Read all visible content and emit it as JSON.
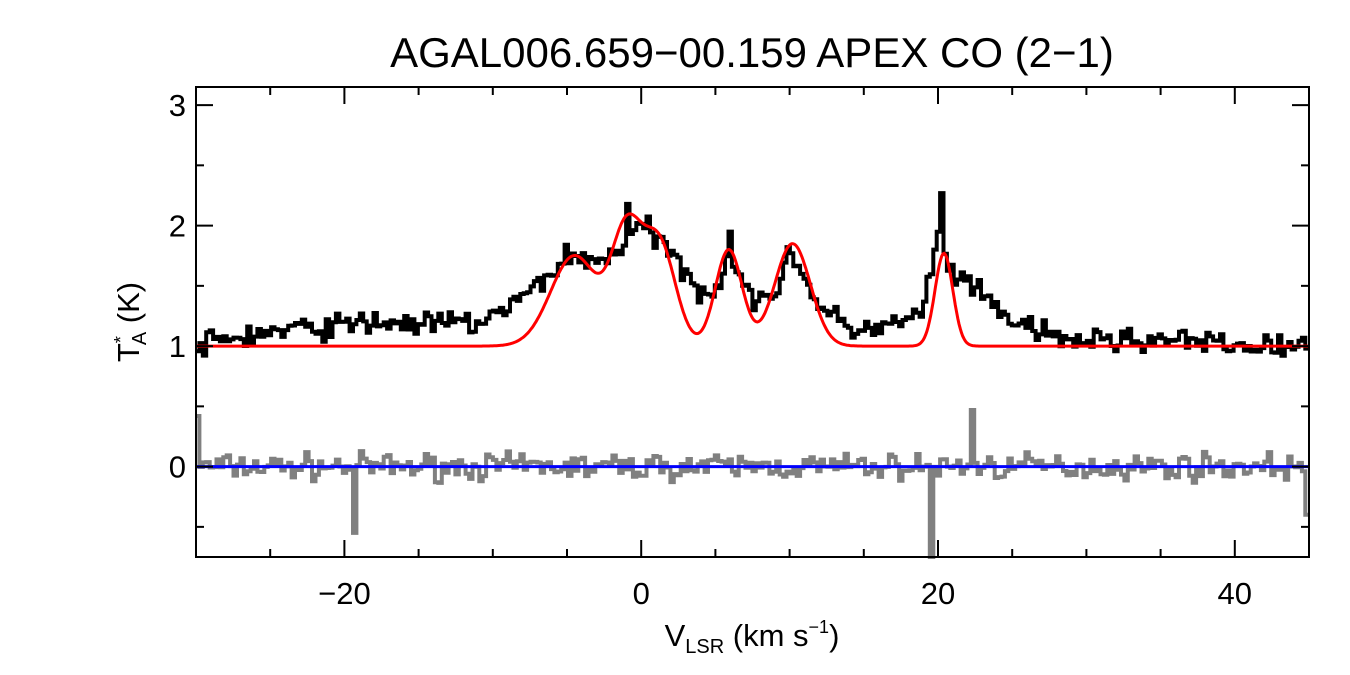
{
  "chart_data": {
    "type": "line",
    "title": "AGAL006.659−00.159  APEX CO (2−1)",
    "xlabel": {
      "main": "V",
      "sub": "LSR",
      "unit_open": " (km s",
      "sup": "−1",
      "unit_close": ")"
    },
    "ylabel": {
      "main": "T",
      "sup": "*",
      "sub": "A",
      "unit": " (K)"
    },
    "xlim": [
      -30,
      45
    ],
    "ylim": [
      -0.75,
      3.15
    ],
    "xticks": [
      {
        "value": -20,
        "label": "−20"
      },
      {
        "value": 0,
        "label": "0"
      },
      {
        "value": 20,
        "label": "20"
      },
      {
        "value": 40,
        "label": "40"
      }
    ],
    "yticks": [
      {
        "value": 0,
        "label": "0"
      },
      {
        "value": 1,
        "label": "1"
      },
      {
        "value": 2,
        "label": "2"
      },
      {
        "value": 3,
        "label": "3"
      }
    ],
    "xminor_step": 5,
    "yminor_step": 0.5,
    "colors": {
      "spectrum": "#000000",
      "fit": "#ff0000",
      "residual": "#808080",
      "baseline": "#0000ff"
    },
    "series": [
      {
        "name": "observed spectrum",
        "style": "histogram",
        "anchors": [
          [
            -30,
            1.0
          ],
          [
            -28,
            1.05
          ],
          [
            -26,
            1.1
          ],
          [
            -22,
            1.15
          ],
          [
            -18,
            1.2
          ],
          [
            -14,
            1.18
          ],
          [
            -11,
            1.2
          ],
          [
            -9,
            1.3
          ],
          [
            -7,
            1.5
          ],
          [
            -5,
            1.75
          ],
          [
            -3,
            1.7
          ],
          [
            -1,
            1.85
          ],
          [
            0,
            2.0
          ],
          [
            1,
            1.9
          ],
          [
            2,
            1.75
          ],
          [
            3,
            1.65
          ],
          [
            4,
            1.45
          ],
          [
            5,
            1.5
          ],
          [
            6,
            1.7
          ],
          [
            7,
            1.55
          ],
          [
            8,
            1.3
          ],
          [
            9,
            1.45
          ],
          [
            10,
            1.8
          ],
          [
            11,
            1.6
          ],
          [
            12,
            1.3
          ],
          [
            14,
            1.15
          ],
          [
            16,
            1.15
          ],
          [
            18,
            1.2
          ],
          [
            19,
            1.3
          ],
          [
            20,
            1.9
          ],
          [
            21,
            1.6
          ],
          [
            22,
            1.5
          ],
          [
            24,
            1.3
          ],
          [
            26,
            1.15
          ],
          [
            28,
            1.05
          ],
          [
            31,
            1.05
          ],
          [
            35,
            1.05
          ],
          [
            40,
            1.0
          ],
          [
            45,
            1.0
          ]
        ],
        "noise": 0.09,
        "spikes": [
          [
            -1,
            2.18
          ],
          [
            20.3,
            2.27
          ],
          [
            6,
            1.95
          ]
        ]
      },
      {
        "name": "gaussian fit",
        "style": "line",
        "baseline": 1.0,
        "components": [
          {
            "amp": 0.75,
            "center": -4.5,
            "sigma": 1.6
          },
          {
            "amp": 0.9,
            "center": -1.0,
            "sigma": 1.0
          },
          {
            "amp": 0.85,
            "center": 1.2,
            "sigma": 1.1
          },
          {
            "amp": 0.8,
            "center": 5.9,
            "sigma": 0.9
          },
          {
            "amp": 0.85,
            "center": 10.2,
            "sigma": 1.2
          },
          {
            "amp": 0.77,
            "center": 20.4,
            "sigma": 0.6
          }
        ]
      },
      {
        "name": "residual",
        "style": "histogram",
        "noise": 0.09,
        "spikes": [
          [
            -30,
            0.42
          ],
          [
            -19.3,
            -0.55
          ],
          [
            19.6,
            -0.75
          ],
          [
            22.3,
            0.47
          ],
          [
            44.9,
            -0.4
          ]
        ]
      },
      {
        "name": "zero baseline",
        "style": "line",
        "value": 0
      }
    ]
  }
}
